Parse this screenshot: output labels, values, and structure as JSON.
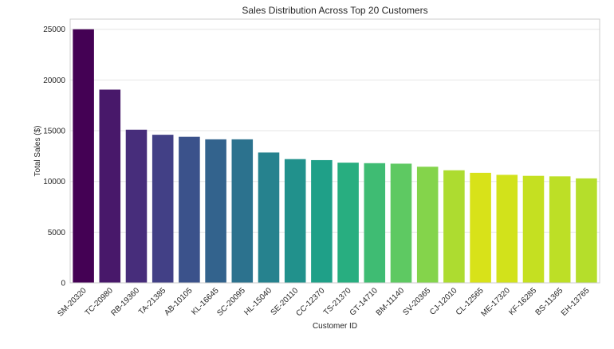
{
  "chart_data": {
    "type": "bar",
    "title": "Sales Distribution Across Top 20 Customers",
    "xlabel": "Customer ID",
    "ylabel": "Total Sales ($)",
    "ylim": [
      0,
      26000
    ],
    "yticks": [
      0,
      5000,
      10000,
      15000,
      20000,
      25000
    ],
    "grid": true,
    "categories": [
      "SM-20320",
      "TC-20980",
      "RB-19360",
      "TA-21385",
      "AB-10105",
      "KL-16645",
      "SC-20095",
      "HL-15040",
      "SE-20110",
      "CC-12370",
      "TS-21370",
      "GT-14710",
      "BM-11140",
      "SV-20365",
      "CJ-12010",
      "CL-12565",
      "ME-17320",
      "KF-16285",
      "BS-11365",
      "EH-13765"
    ],
    "values": [
      25000,
      19050,
      15100,
      14600,
      14400,
      14150,
      14150,
      12850,
      12200,
      12100,
      11850,
      11800,
      11750,
      11450,
      11100,
      10850,
      10650,
      10550,
      10500,
      10300
    ],
    "colors": [
      "#440154",
      "#48186a",
      "#472d7b",
      "#424086",
      "#3b528b",
      "#33638d",
      "#2c728e",
      "#26828e",
      "#21918c",
      "#1fa088",
      "#28ae80",
      "#3fbc73",
      "#5ec962",
      "#84d44b",
      "#addc30",
      "#d8e219",
      "#d2e21b",
      "#c5e021",
      "#bddf26",
      "#b5de2b"
    ]
  }
}
